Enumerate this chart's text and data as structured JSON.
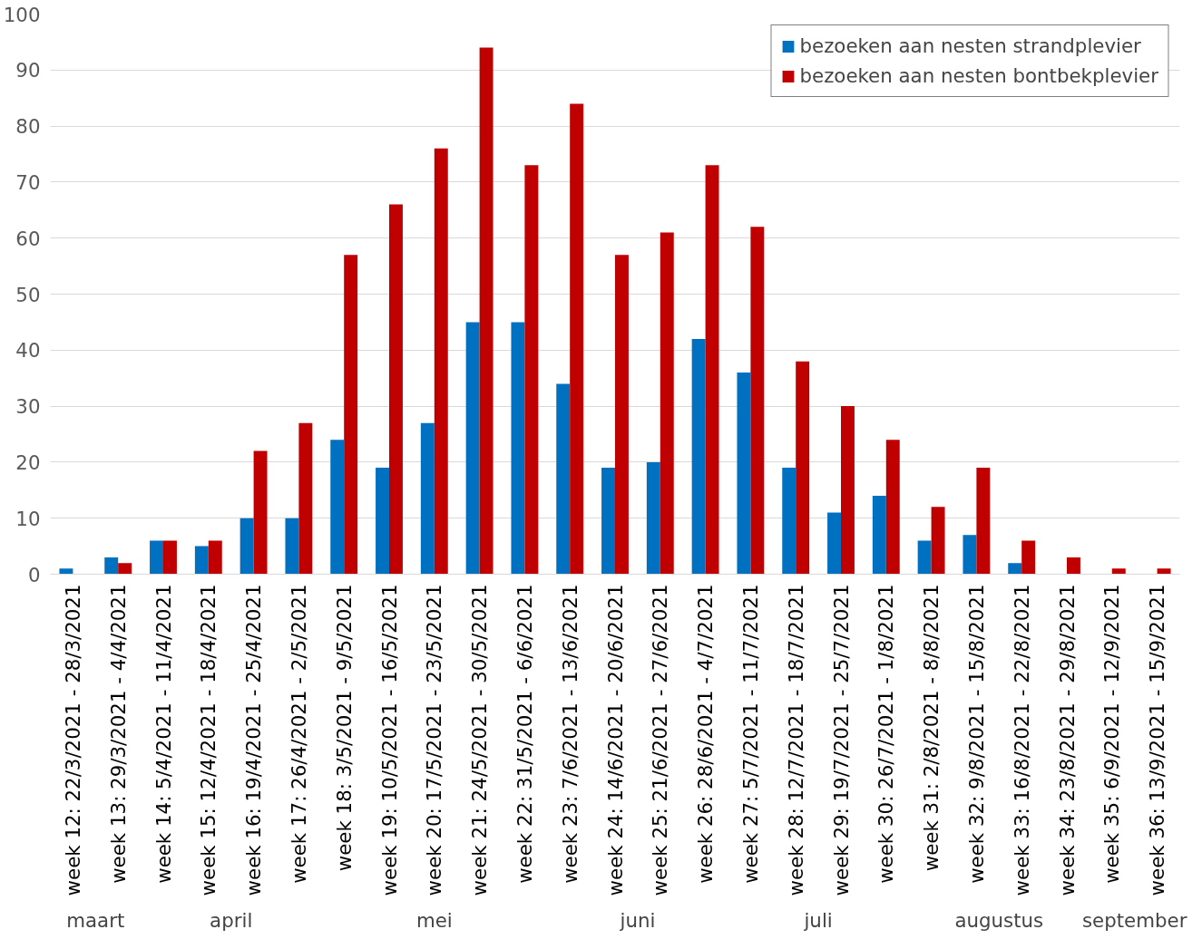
{
  "chart_data": {
    "type": "bar",
    "categories": [
      "week 12: 22/3/2021 - 28/3/2021",
      "week 13: 29/3/2021 - 4/4/2021",
      "week 14: 5/4/2021 - 11/4/2021",
      "week 15: 12/4/2021 - 18/4/2021",
      "week 16: 19/4/2021 - 25/4/2021",
      "week 17: 26/4/2021 - 2/5/2021",
      "week 18: 3/5/2021 - 9/5/2021",
      "week 19: 10/5/2021 - 16/5/2021",
      "week 20: 17/5/2021 - 23/5/2021",
      "week 21: 24/5/2021 - 30/5/2021",
      "week 22: 31/5/2021 - 6/6/2021",
      "week 23: 7/6/2021 - 13/6/2021",
      "week 24: 14/6/2021 - 20/6/2021",
      "week 25: 21/6/2021 - 27/6/2021",
      "week 26: 28/6/2021 - 4/7/2021",
      "week 27: 5/7/2021 - 11/7/2021",
      "week 28: 12/7/2021 - 18/7/2021",
      "week 29: 19/7/2021 - 25/7/2021",
      "week 30: 26/7/2021 - 1/8/2021",
      "week 31: 2/8/2021 - 8/8/2021",
      "week 32: 9/8/2021 - 15/8/2021",
      "week 33: 16/8/2021 - 22/8/2021",
      "week 34: 23/8/2021 - 29/8/2021",
      "week 35: 6/9/2021 - 12/9/2021",
      "week 36: 13/9/2021 - 15/9/2021"
    ],
    "series": [
      {
        "name": "bezoeken aan nesten strandplevier",
        "color": "#0070c0",
        "values": [
          1,
          3,
          6,
          5,
          10,
          10,
          24,
          19,
          27,
          45,
          45,
          34,
          19,
          20,
          42,
          36,
          19,
          11,
          14,
          6,
          7,
          2,
          0,
          0,
          0
        ]
      },
      {
        "name": "bezoeken aan nesten bontbekplevier",
        "color": "#c00000",
        "values": [
          0,
          2,
          6,
          6,
          22,
          27,
          57,
          66,
          76,
          94,
          73,
          84,
          57,
          61,
          73,
          62,
          38,
          30,
          24,
          12,
          19,
          6,
          3,
          1,
          1
        ]
      }
    ],
    "ylim": [
      0,
      100
    ],
    "yticks": [
      0,
      10,
      20,
      30,
      40,
      50,
      60,
      70,
      80,
      90,
      100
    ],
    "grid": "y",
    "legend": "top right",
    "annotations": [
      "maart",
      "april",
      "mei",
      "juni",
      "juli",
      "augustus",
      "september"
    ]
  }
}
